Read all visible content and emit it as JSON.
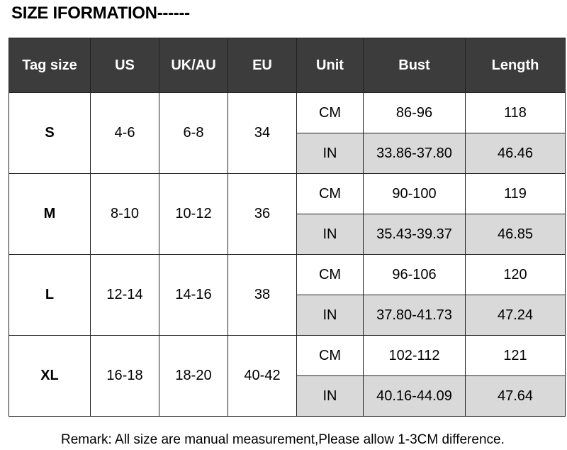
{
  "title": "SIZE IFORMATION------",
  "columns": [
    "Tag size",
    "US",
    "UK/AU",
    "EU",
    "Unit",
    "Bust",
    "Length"
  ],
  "rows": [
    {
      "tag": "S",
      "us": "4-6",
      "ukau": "6-8",
      "eu": "34",
      "cm": {
        "unit": "CM",
        "bust": "86-96",
        "length": "118"
      },
      "in": {
        "unit": "IN",
        "bust": "33.86-37.80",
        "length": "46.46"
      }
    },
    {
      "tag": "M",
      "us": "8-10",
      "ukau": "10-12",
      "eu": "36",
      "cm": {
        "unit": "CM",
        "bust": "90-100",
        "length": "119"
      },
      "in": {
        "unit": "IN",
        "bust": "35.43-39.37",
        "length": "46.85"
      }
    },
    {
      "tag": "L",
      "us": "12-14",
      "ukau": "14-16",
      "eu": "38",
      "cm": {
        "unit": "CM",
        "bust": "96-106",
        "length": "120"
      },
      "in": {
        "unit": "IN",
        "bust": "37.80-41.73",
        "length": "47.24"
      }
    },
    {
      "tag": "XL",
      "us": "16-18",
      "ukau": "18-20",
      "eu": "40-42",
      "cm": {
        "unit": "CM",
        "bust": "102-112",
        "length": "121"
      },
      "in": {
        "unit": "IN",
        "bust": "40.16-44.09",
        "length": "47.64"
      }
    }
  ],
  "remark": "Remark: All size are manual measurement,Please allow 1-3CM difference.",
  "colors": {
    "header_bg": "#3c3c3c",
    "inch_row_bg": "#d9d9d9"
  }
}
